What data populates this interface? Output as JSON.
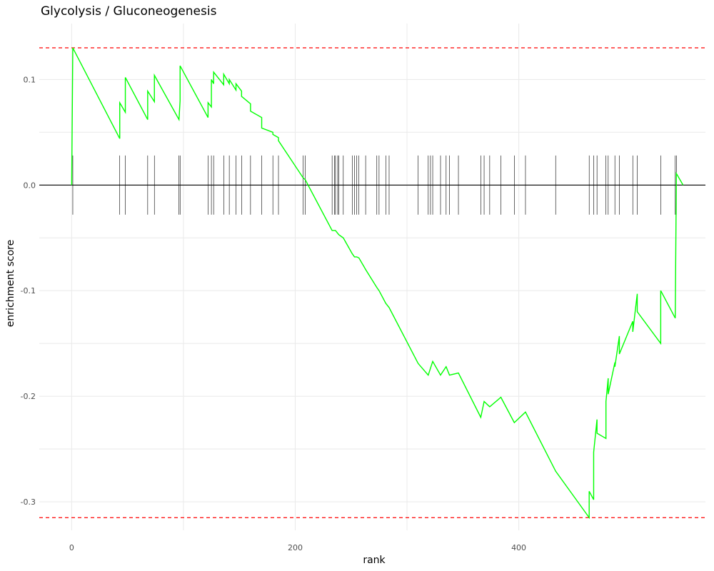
{
  "chart_data": {
    "type": "line",
    "title": "Glycolysis / Gluconeogenesis",
    "xlabel": "rank",
    "ylabel": "enrichment score",
    "xlim": [
      -29,
      567
    ],
    "ylim": [
      -0.327,
      0.153
    ],
    "x_ticks": [
      0,
      200,
      400
    ],
    "y_ticks": [
      -0.3,
      -0.2,
      -0.1,
      0.0,
      0.1
    ],
    "y_tick_labels": [
      "-0.3",
      "-0.2",
      "-0.1",
      "0.0",
      "0.1"
    ],
    "grid": true,
    "colors": {
      "es_line": "#00ff00",
      "reference_lines": "#ff0000",
      "hits": "#000000",
      "zero_line": "#000000"
    },
    "max_es": 0.13,
    "min_es": -0.315,
    "hit_band": [
      -0.028,
      0.028
    ],
    "hits": [
      1,
      43,
      48,
      68,
      74,
      96,
      97,
      122,
      125,
      127,
      136,
      141,
      147,
      152,
      160,
      170,
      180,
      185,
      207,
      209,
      233,
      235,
      236,
      238,
      239,
      243,
      251,
      253,
      255,
      257,
      263,
      273,
      275,
      281,
      284,
      310,
      319,
      321,
      323,
      330,
      335,
      338,
      346,
      366,
      369,
      374,
      384,
      396,
      406,
      433,
      463,
      467,
      470,
      478,
      480,
      486,
      490,
      502,
      506,
      527,
      540,
      541
    ],
    "series": [
      {
        "x": [
          0,
          1,
          43,
          43,
          48,
          48,
          68,
          68,
          74,
          74,
          96,
          97,
          97,
          122,
          122,
          125,
          125,
          127,
          127,
          136,
          136,
          141,
          141,
          147,
          147,
          152,
          152,
          160,
          160,
          170,
          170,
          180,
          180,
          185,
          185,
          207,
          209,
          233,
          236,
          239,
          243,
          251,
          253,
          255,
          257,
          263,
          273,
          275,
          281,
          284,
          310,
          319,
          323,
          330,
          335,
          338,
          346,
          366,
          369,
          374,
          384,
          396,
          406,
          433,
          463,
          463,
          467,
          467,
          470,
          470,
          478,
          478,
          480,
          480,
          486,
          486,
          490,
          490,
          502,
          502,
          506,
          506,
          527,
          527,
          540,
          541,
          547
        ],
        "y": [
          0.0,
          0.13,
          0.044,
          0.078,
          0.069,
          0.102,
          0.062,
          0.089,
          0.079,
          0.104,
          0.062,
          0.08,
          0.113,
          0.064,
          0.078,
          0.074,
          0.1,
          0.096,
          0.107,
          0.095,
          0.105,
          0.096,
          0.1,
          0.09,
          0.096,
          0.089,
          0.084,
          0.077,
          0.07,
          0.064,
          0.054,
          0.05,
          0.048,
          0.045,
          0.042,
          0.007,
          0.005,
          -0.043,
          -0.043,
          -0.047,
          -0.05,
          -0.065,
          -0.068,
          -0.068,
          -0.069,
          -0.08,
          -0.097,
          -0.1,
          -0.112,
          -0.116,
          -0.169,
          -0.18,
          -0.167,
          -0.18,
          -0.172,
          -0.18,
          -0.178,
          -0.22,
          -0.205,
          -0.21,
          -0.201,
          -0.225,
          -0.215,
          -0.271,
          -0.315,
          -0.29,
          -0.298,
          -0.253,
          -0.222,
          -0.235,
          -0.24,
          -0.205,
          -0.183,
          -0.198,
          -0.168,
          -0.172,
          -0.143,
          -0.16,
          -0.129,
          -0.139,
          -0.103,
          -0.12,
          -0.15,
          -0.1,
          -0.126,
          0.011,
          0.0
        ]
      }
    ]
  }
}
